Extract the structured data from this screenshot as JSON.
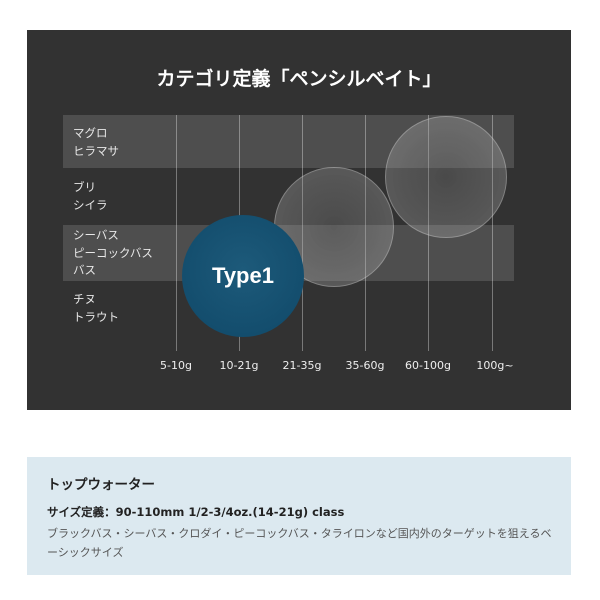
{
  "diagram": {
    "title": "カテゴリ定義「ペンシルベイト」",
    "rows": [
      {
        "lines": [
          "マグロ",
          "ヒラマサ"
        ]
      },
      {
        "lines": [
          "ブリ",
          "シイラ"
        ]
      },
      {
        "lines": [
          "シーバス",
          "ピーコックバス",
          "バス"
        ]
      },
      {
        "lines": [
          "チヌ",
          "トラウト"
        ]
      }
    ],
    "weight_ticks": [
      "5-10g",
      "10-21g",
      "21-35g",
      "35-60g",
      "60-100g",
      "100g~"
    ],
    "highlight": {
      "label": "Type1",
      "color": "#12506f"
    },
    "background_color": "#323232"
  },
  "info": {
    "title": "トップウォーター",
    "size_definition": "サイズ定義：90-110mm 1/2-3/4oz.(14-21g) class",
    "description": "ブラックバス・シーバス・クロダイ・ピーコックバス・タライロンなど国内外のターゲットを狙えるベーシックサイズ",
    "background_color": "#dce9f0"
  }
}
